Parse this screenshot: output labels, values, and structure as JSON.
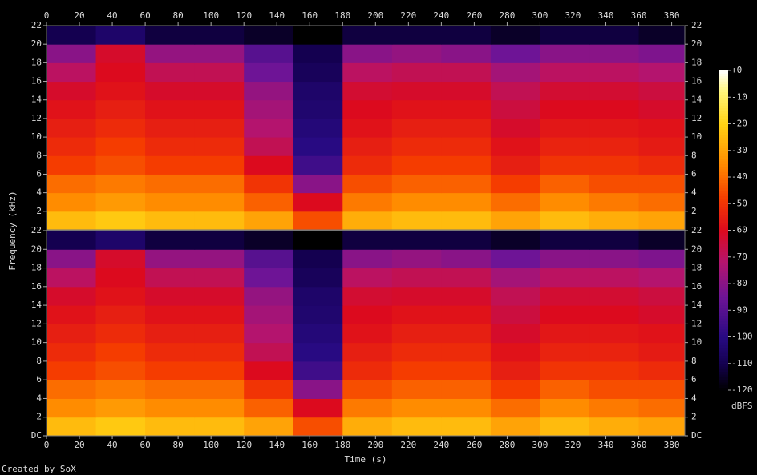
{
  "chart_data": [
    {
      "type": "heatmap",
      "ylabel": "Frequency (kHz)",
      "xlim": [
        0,
        388
      ],
      "xticks": [
        0,
        20,
        40,
        60,
        80,
        100,
        120,
        140,
        160,
        180,
        200,
        220,
        240,
        260,
        280,
        300,
        320,
        340,
        360,
        380
      ],
      "ylim": [
        0,
        22
      ],
      "yticks": [
        2,
        4,
        6,
        8,
        10,
        12,
        14,
        16,
        18,
        20,
        22
      ],
      "xbins": [
        0,
        30,
        60,
        90,
        120,
        150,
        180,
        210,
        240,
        270,
        300,
        330,
        360,
        388
      ],
      "ybins": [
        0,
        2,
        4,
        6,
        8,
        10,
        12,
        14,
        16,
        18,
        20,
        22
      ],
      "values": [
        [
          -25,
          -22,
          -25,
          -25,
          -30,
          -45,
          -28,
          -25,
          -25,
          -30,
          -25,
          -28,
          -30
        ],
        [
          -35,
          -32,
          -35,
          -35,
          -42,
          -60,
          -38,
          -35,
          -35,
          -40,
          -35,
          -38,
          -40
        ],
        [
          -40,
          -38,
          -40,
          -40,
          -50,
          -80,
          -45,
          -42,
          -42,
          -48,
          -42,
          -45,
          -45
        ],
        [
          -48,
          -45,
          -48,
          -48,
          -60,
          -95,
          -52,
          -48,
          -48,
          -55,
          -50,
          -50,
          -52
        ],
        [
          -52,
          -48,
          -52,
          -52,
          -68,
          -100,
          -55,
          -52,
          -52,
          -58,
          -54,
          -54,
          -56
        ],
        [
          -55,
          -52,
          -55,
          -55,
          -72,
          -102,
          -58,
          -55,
          -55,
          -62,
          -57,
          -57,
          -58
        ],
        [
          -58,
          -55,
          -58,
          -58,
          -75,
          -104,
          -60,
          -58,
          -58,
          -65,
          -60,
          -60,
          -62
        ],
        [
          -62,
          -58,
          -62,
          -62,
          -78,
          -105,
          -63,
          -62,
          -62,
          -68,
          -63,
          -63,
          -65
        ],
        [
          -70,
          -60,
          -68,
          -68,
          -85,
          -108,
          -70,
          -68,
          -68,
          -75,
          -70,
          -70,
          -72
        ],
        [
          -80,
          -62,
          -78,
          -78,
          -90,
          -110,
          -80,
          -78,
          -80,
          -85,
          -80,
          -80,
          -82
        ],
        [
          -110,
          -105,
          -112,
          -112,
          -115,
          -120,
          -112,
          -112,
          -112,
          -115,
          -112,
          -112,
          -115
        ]
      ],
      "colorbar": {
        "clim": [
          -120,
          0
        ],
        "label": "dBFS",
        "ticks": [
          {
            "value": 0,
            "label": "+0"
          },
          -10,
          -20,
          -30,
          -40,
          -50,
          -60,
          -70,
          -80,
          -90,
          -100,
          -110,
          -120
        ]
      }
    },
    {
      "type": "heatmap",
      "xlabel": "Time (s)",
      "xlim": [
        0,
        388
      ],
      "xticks": [
        0,
        20,
        40,
        60,
        80,
        100,
        120,
        140,
        160,
        180,
        200,
        220,
        240,
        260,
        280,
        300,
        320,
        340,
        360,
        380
      ],
      "ylim": [
        0,
        22
      ],
      "yticks": [
        {
          "value": 0,
          "label": "DC"
        },
        2,
        4,
        6,
        8,
        10,
        12,
        14,
        16,
        18,
        20,
        22
      ],
      "xbins": [
        0,
        30,
        60,
        90,
        120,
        150,
        180,
        210,
        240,
        270,
        300,
        330,
        360,
        388
      ],
      "ybins": [
        0,
        2,
        4,
        6,
        8,
        10,
        12,
        14,
        16,
        18,
        20,
        22
      ],
      "values": [
        [
          -25,
          -22,
          -25,
          -25,
          -30,
          -45,
          -28,
          -25,
          -25,
          -30,
          -25,
          -28,
          -30
        ],
        [
          -35,
          -32,
          -35,
          -35,
          -42,
          -60,
          -38,
          -35,
          -35,
          -40,
          -35,
          -38,
          -40
        ],
        [
          -40,
          -38,
          -40,
          -40,
          -50,
          -80,
          -45,
          -42,
          -42,
          -48,
          -42,
          -45,
          -45
        ],
        [
          -48,
          -45,
          -48,
          -48,
          -60,
          -95,
          -52,
          -48,
          -48,
          -55,
          -50,
          -50,
          -52
        ],
        [
          -52,
          -48,
          -52,
          -52,
          -68,
          -100,
          -55,
          -52,
          -52,
          -58,
          -54,
          -54,
          -56
        ],
        [
          -55,
          -52,
          -55,
          -55,
          -72,
          -102,
          -58,
          -55,
          -55,
          -62,
          -57,
          -57,
          -58
        ],
        [
          -58,
          -55,
          -58,
          -58,
          -75,
          -104,
          -60,
          -58,
          -58,
          -65,
          -60,
          -60,
          -62
        ],
        [
          -62,
          -58,
          -62,
          -62,
          -78,
          -105,
          -63,
          -62,
          -62,
          -68,
          -63,
          -63,
          -65
        ],
        [
          -70,
          -60,
          -68,
          -68,
          -85,
          -108,
          -70,
          -68,
          -68,
          -75,
          -70,
          -70,
          -72
        ],
        [
          -80,
          -62,
          -78,
          -78,
          -90,
          -110,
          -80,
          -78,
          -80,
          -85,
          -80,
          -80,
          -82
        ],
        [
          -110,
          -105,
          -112,
          -112,
          -115,
          -120,
          -112,
          -112,
          -112,
          -115,
          -112,
          -112,
          -115
        ]
      ]
    }
  ],
  "footer": "Created by SoX"
}
